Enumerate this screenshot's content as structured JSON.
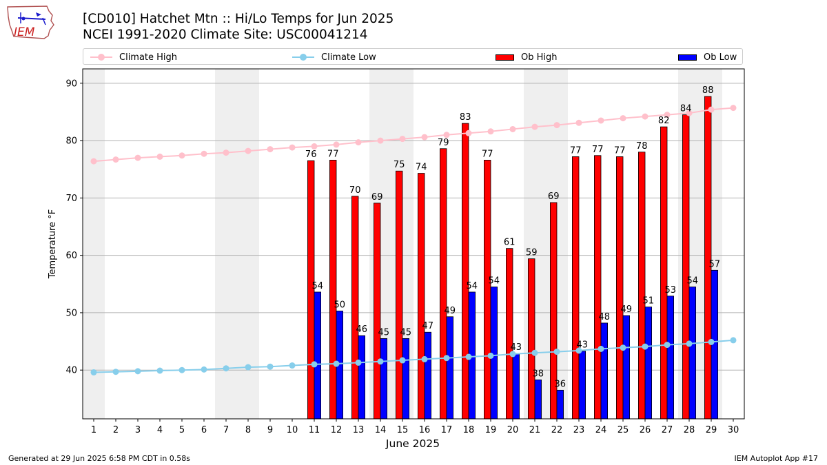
{
  "header": {
    "title_line1": "[CD010] Hatchet Mtn :: Hi/Lo Temps for Jun 2025",
    "title_line2": "NCEI 1991-2020 Climate Site: USC00041214"
  },
  "logo": {
    "text": "IEM"
  },
  "footer": {
    "generated": "Generated at 29 Jun 2025 6:58 PM CDT in 0.58s",
    "app": "IEM Autoplot App #17"
  },
  "colors": {
    "climate_high": "#ffc0cb",
    "climate_low": "#87ceeb",
    "ob_high": "#ff0000",
    "ob_low": "#0000ff",
    "weekend_shade": "#efefef",
    "grid": "#b0b0b0"
  },
  "chart_data": {
    "type": "bar",
    "xlabel": "June 2025",
    "ylabel": "Temperature °F",
    "xlim": [
      0.5,
      30.5
    ],
    "ylim": [
      31.5,
      92.5
    ],
    "yticks": [
      40,
      50,
      60,
      70,
      80,
      90
    ],
    "grid": "horizontal",
    "legend": {
      "position": "top",
      "entries": [
        "Climate High",
        "Climate Low",
        "Ob High",
        "Ob Low"
      ]
    },
    "shaded_weekends": [
      [
        1,
        1
      ],
      [
        7,
        8
      ],
      [
        14,
        15
      ],
      [
        21,
        22
      ],
      [
        28,
        29
      ]
    ],
    "x": [
      1,
      2,
      3,
      4,
      5,
      6,
      7,
      8,
      9,
      10,
      11,
      12,
      13,
      14,
      15,
      16,
      17,
      18,
      19,
      20,
      21,
      22,
      23,
      24,
      25,
      26,
      27,
      28,
      29,
      30
    ],
    "series": [
      {
        "name": "Climate High",
        "type": "line",
        "values": [
          76.4,
          76.7,
          77.0,
          77.2,
          77.4,
          77.7,
          77.9,
          78.2,
          78.5,
          78.8,
          79.0,
          79.3,
          79.7,
          80.0,
          80.3,
          80.6,
          81.0,
          81.3,
          81.6,
          82.0,
          82.4,
          82.7,
          83.1,
          83.5,
          83.9,
          84.2,
          84.5,
          84.8,
          85.4,
          85.7
        ]
      },
      {
        "name": "Climate Low",
        "type": "line",
        "values": [
          39.6,
          39.7,
          39.8,
          39.9,
          40.0,
          40.1,
          40.3,
          40.5,
          40.6,
          40.8,
          41.0,
          41.1,
          41.3,
          41.5,
          41.7,
          41.9,
          42.1,
          42.3,
          42.5,
          42.8,
          43.0,
          43.2,
          43.4,
          43.7,
          43.9,
          44.1,
          44.4,
          44.6,
          44.9,
          45.2
        ]
      },
      {
        "name": "Ob High",
        "type": "bar",
        "values": [
          null,
          null,
          null,
          null,
          null,
          null,
          null,
          null,
          null,
          null,
          76.5,
          76.6,
          70.3,
          69.1,
          74.7,
          74.3,
          78.6,
          83.0,
          76.6,
          61.2,
          59.4,
          69.2,
          77.2,
          77.4,
          77.2,
          78.0,
          82.4,
          84.5,
          87.7,
          null
        ],
        "labels": [
          "",
          "",
          "",
          "",
          "",
          "",
          "",
          "",
          "",
          "",
          "76",
          "77",
          "70",
          "69",
          "75",
          "74",
          "79",
          "83",
          "77",
          "61",
          "59",
          "69",
          "77",
          "77",
          "77",
          "78",
          "82",
          "84",
          "88",
          ""
        ]
      },
      {
        "name": "Ob Low",
        "type": "bar",
        "values": [
          null,
          null,
          null,
          null,
          null,
          null,
          null,
          null,
          null,
          null,
          53.6,
          50.3,
          46.0,
          45.5,
          45.5,
          46.6,
          49.3,
          53.6,
          54.5,
          42.9,
          38.3,
          36.5,
          43.3,
          48.2,
          49.5,
          51.0,
          52.9,
          54.5,
          57.4,
          null
        ],
        "labels": [
          "",
          "",
          "",
          "",
          "",
          "",
          "",
          "",
          "",
          "",
          "54",
          "50",
          "46",
          "45",
          "45",
          "47",
          "49",
          "54",
          "54",
          "43",
          "38",
          "36",
          "43",
          "48",
          "49",
          "51",
          "53",
          "54",
          "57",
          ""
        ]
      }
    ]
  }
}
